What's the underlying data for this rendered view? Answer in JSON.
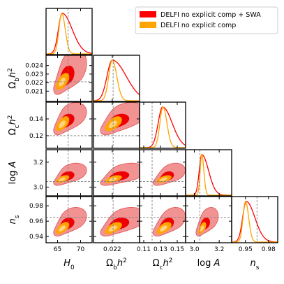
{
  "chart_data": {
    "type": "corner",
    "parameters": [
      {
        "label": "H_0",
        "range": [
          62.5,
          72.5
        ],
        "truth": 67.3,
        "ticks": [
          65,
          70
        ],
        "tick_labels": [
          "65",
          "70"
        ]
      },
      {
        "label": "Ω_b h^2",
        "range": [
          0.0198,
          0.0252
        ],
        "truth": 0.0221,
        "ticks": [
          0.022
        ],
        "tick_labels": [
          "0.022"
        ],
        "row_ticks": [
          0.021,
          0.022,
          0.023,
          0.024
        ],
        "row_tick_labels": [
          "0.021",
          "0.022",
          "0.023",
          "0.024"
        ]
      },
      {
        "label": "Ω_c h^2",
        "range": [
          0.105,
          0.16
        ],
        "truth": 0.12,
        "ticks": [
          0.11,
          0.13,
          0.15
        ],
        "tick_labels": [
          "0.11",
          "0.13",
          "0.15"
        ],
        "row_ticks": [
          0.12,
          0.14
        ],
        "row_tick_labels": [
          "0.12",
          "0.14"
        ]
      },
      {
        "label": "log A",
        "range": [
          2.93,
          3.3
        ],
        "truth": 3.045,
        "ticks": [
          3.0,
          3.2
        ],
        "tick_labels": [
          "3.0",
          "3.2"
        ],
        "row_ticks": [
          3.0,
          3.2
        ],
        "row_tick_labels": [
          "3.0",
          "3.2"
        ]
      },
      {
        "label": "n_s",
        "range": [
          0.932,
          0.992
        ],
        "truth": 0.965,
        "ticks": [
          0.95,
          0.98
        ],
        "tick_labels": [
          "0.95",
          "0.98"
        ],
        "row_ticks": [
          0.94,
          0.96,
          0.98
        ],
        "row_tick_labels": [
          "0.94",
          "0.96",
          "0.98"
        ]
      }
    ],
    "series": [
      {
        "name": "DELFI no explicit comp + SWA",
        "color": "#ff0000",
        "means": [
          66.0,
          0.022,
          0.1325,
          3.06,
          0.951
        ],
        "sigmas": [
          1.2,
          0.0009,
          0.007,
          0.03,
          0.0065
        ],
        "right_skew": [
          0.9,
          0.9,
          0.7,
          0.9,
          0.8
        ],
        "outer_contour_color": "#f08080",
        "inner_contour_color": "#ee0000"
      },
      {
        "name": "DELFI no explicit comp",
        "color": "#ffa500",
        "means": [
          65.9,
          0.022,
          0.133,
          3.06,
          0.95
        ],
        "sigmas": [
          0.65,
          0.00045,
          0.004,
          0.014,
          0.0035
        ],
        "right_skew": [
          0.2,
          0.2,
          0.2,
          0.2,
          0.2
        ],
        "outer_contour_color": "#ffa500",
        "inner_contour_color": "#ffd27f"
      }
    ],
    "truth_line_color": "#808080",
    "legend_position": "top-right"
  }
}
